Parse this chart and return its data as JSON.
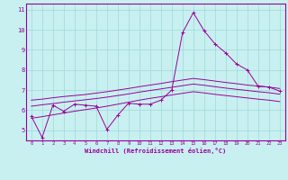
{
  "xlabel": "Windchill (Refroidissement éolien,°C)",
  "bg_color": "#c8f0f0",
  "grid_color": "#a0d8d8",
  "line_color": "#990099",
  "xlim": [
    -0.5,
    23.5
  ],
  "ylim": [
    4.5,
    11.3
  ],
  "xticks": [
    0,
    1,
    2,
    3,
    4,
    5,
    6,
    7,
    8,
    9,
    10,
    11,
    12,
    13,
    14,
    15,
    16,
    17,
    18,
    19,
    20,
    21,
    22,
    23
  ],
  "yticks": [
    5,
    6,
    7,
    8,
    9,
    10,
    11
  ],
  "series": {
    "jagged": {
      "x": [
        0,
        1,
        2,
        3,
        4,
        5,
        6,
        7,
        8,
        9,
        10,
        11,
        12,
        13,
        14,
        15,
        16,
        17,
        18,
        19,
        20,
        21,
        22,
        23
      ],
      "y": [
        5.7,
        4.65,
        6.25,
        5.95,
        6.3,
        6.25,
        6.2,
        5.05,
        5.75,
        6.35,
        6.3,
        6.3,
        6.5,
        7.0,
        9.85,
        10.85,
        9.95,
        9.3,
        8.85,
        8.3,
        8.0,
        7.2,
        7.15,
        6.95
      ]
    },
    "smooth_upper": {
      "x": [
        0,
        1,
        2,
        3,
        4,
        5,
        6,
        7,
        8,
        9,
        10,
        11,
        12,
        13,
        14,
        15,
        16,
        17,
        18,
        19,
        20,
        21,
        22,
        23
      ],
      "y": [
        6.5,
        6.55,
        6.62,
        6.68,
        6.73,
        6.78,
        6.85,
        6.92,
        7.0,
        7.08,
        7.17,
        7.25,
        7.33,
        7.42,
        7.5,
        7.58,
        7.52,
        7.45,
        7.38,
        7.32,
        7.25,
        7.2,
        7.15,
        7.08
      ]
    },
    "smooth_mid": {
      "x": [
        0,
        1,
        2,
        3,
        4,
        5,
        6,
        7,
        8,
        9,
        10,
        11,
        12,
        13,
        14,
        15,
        16,
        17,
        18,
        19,
        20,
        21,
        22,
        23
      ],
      "y": [
        6.2,
        6.27,
        6.33,
        6.4,
        6.46,
        6.52,
        6.58,
        6.65,
        6.73,
        6.81,
        6.9,
        6.98,
        7.06,
        7.14,
        7.22,
        7.3,
        7.24,
        7.17,
        7.1,
        7.04,
        6.98,
        6.92,
        6.87,
        6.8
      ]
    },
    "smooth_lower": {
      "x": [
        0,
        1,
        2,
        3,
        4,
        5,
        6,
        7,
        8,
        9,
        10,
        11,
        12,
        13,
        14,
        15,
        16,
        17,
        18,
        19,
        20,
        21,
        22,
        23
      ],
      "y": [
        5.6,
        5.68,
        5.77,
        5.86,
        5.95,
        6.03,
        6.11,
        6.2,
        6.3,
        6.4,
        6.5,
        6.59,
        6.67,
        6.76,
        6.84,
        6.92,
        6.86,
        6.79,
        6.73,
        6.67,
        6.61,
        6.55,
        6.5,
        6.43
      ]
    }
  }
}
